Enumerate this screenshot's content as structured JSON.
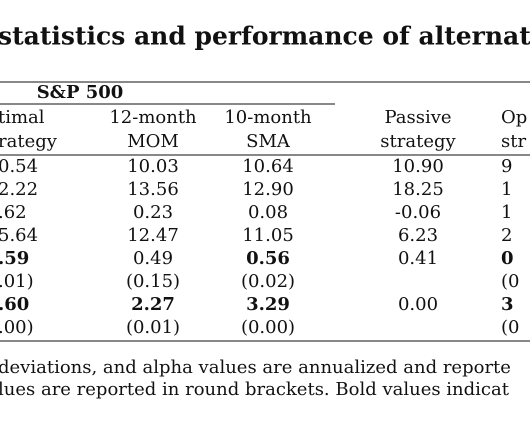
{
  "title": "statistics and performance of alternati",
  "table": {
    "group_header": "S&P 500",
    "columns": [
      [
        "timal",
        "rategy"
      ],
      [
        "12-month",
        "MOM"
      ],
      [
        "10-month",
        "SMA"
      ],
      [
        "Passive",
        "strategy"
      ],
      [
        "Op",
        "str"
      ]
    ],
    "rows": [
      [
        "0.54",
        "10.03",
        "10.64",
        "10.90",
        "9"
      ],
      [
        "2.22",
        "13.56",
        "12.90",
        "18.25",
        "1"
      ],
      [
        ".62",
        "0.23",
        "0.08",
        "-0.06",
        "1"
      ],
      [
        "5.64",
        "12.47",
        "11.05",
        "6.23",
        "2"
      ],
      [
        ".59",
        "0.49",
        "0.56",
        "0.41",
        "0"
      ],
      [
        ".01)",
        "(0.15)",
        "(0.02)",
        null,
        "(0"
      ],
      [
        ".60",
        "2.27",
        "3.29",
        "0.00",
        "3"
      ],
      [
        ".00)",
        "(0.01)",
        "(0.00)",
        null,
        "(0"
      ]
    ],
    "bold": [
      [
        false,
        false,
        false,
        false,
        false
      ],
      [
        false,
        false,
        false,
        false,
        false
      ],
      [
        false,
        false,
        false,
        false,
        false
      ],
      [
        false,
        false,
        false,
        false,
        false
      ],
      [
        true,
        false,
        true,
        false,
        true
      ],
      [
        false,
        false,
        false,
        false,
        false
      ],
      [
        true,
        true,
        true,
        false,
        true
      ],
      [
        false,
        false,
        false,
        false,
        false
      ]
    ]
  },
  "footnote": [
    "deviations, and alpha values are annualized and reporte",
    "lues are reported in round brackets. Bold values indicat"
  ]
}
